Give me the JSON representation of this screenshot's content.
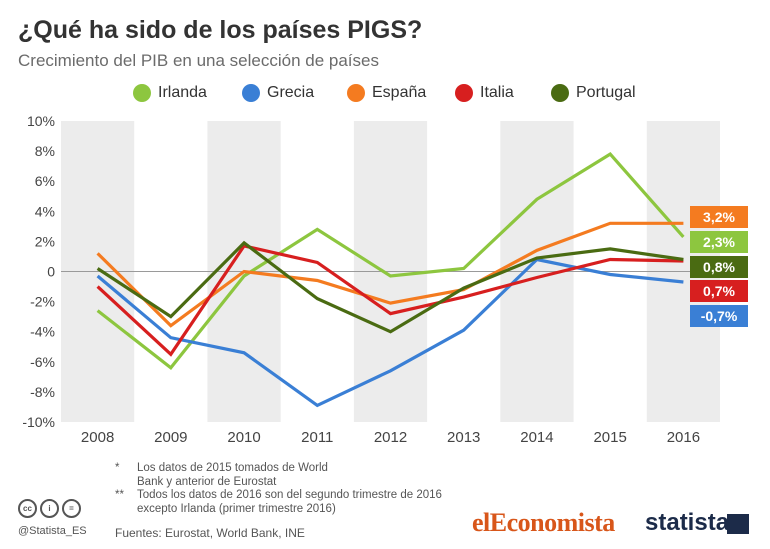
{
  "header": {
    "title": "¿Qué ha sido de los países PIGS?",
    "subtitle": "Crecimiento del PIB en una selección de países"
  },
  "chart_data": {
    "type": "line",
    "x": [
      "2008",
      "2009",
      "2010",
      "2011",
      "2012",
      "2013",
      "2014",
      "2015",
      "2016"
    ],
    "ylim": [
      -10,
      10
    ],
    "yticks": [
      "10%",
      "8%",
      "6%",
      "4%",
      "2%",
      "0",
      "-2%",
      "-4%",
      "-6%",
      "-8%",
      "-10%"
    ],
    "ytick_values": [
      10,
      8,
      6,
      4,
      2,
      0,
      -2,
      -4,
      -6,
      -8,
      -10
    ],
    "grid": "alternating vertical bands",
    "legend_position": "top",
    "series": [
      {
        "name": "Irlanda",
        "color": "#8dc63f",
        "values": [
          -2.6,
          -6.4,
          -0.3,
          2.8,
          -0.3,
          0.2,
          4.8,
          7.8,
          2.3
        ],
        "end_label": "2,3%"
      },
      {
        "name": "Grecia",
        "color": "#3a7fd5",
        "values": [
          -0.3,
          -4.4,
          -5.4,
          -8.9,
          -6.6,
          -3.9,
          0.8,
          -0.2,
          -0.7
        ],
        "end_label": "-0,7%"
      },
      {
        "name": "España",
        "color": "#f47b20",
        "values": [
          1.2,
          -3.6,
          0.0,
          -0.6,
          -2.1,
          -1.2,
          1.4,
          3.2,
          3.2
        ],
        "end_label": "3,2%"
      },
      {
        "name": "Italia",
        "color": "#d71f1f",
        "values": [
          -1.0,
          -5.5,
          1.7,
          0.6,
          -2.8,
          -1.7,
          -0.4,
          0.8,
          0.7
        ],
        "end_label": "0,7%"
      },
      {
        "name": "Portugal",
        "color": "#4a6b12",
        "values": [
          0.2,
          -3.0,
          1.9,
          -1.8,
          -4.0,
          -1.1,
          0.9,
          1.5,
          0.8
        ],
        "end_label": "0,8%"
      }
    ]
  },
  "footer": {
    "notes": [
      {
        "mark": "*",
        "text": "Los datos de 2015 tomados de World Bank y anterior de Eurostat"
      },
      {
        "mark": "**",
        "text": "Todos los datos de 2016 son del segundo trimestre de 2016 excepto Irlanda (primer trimestre 2016)"
      }
    ],
    "sources": "Fuentes: Eurostat, World Bank, INE",
    "handle": "@Statista_ES",
    "cc_icons": [
      {
        "icon": "creative-commons-icon",
        "text": "cc"
      },
      {
        "icon": "attribution-icon",
        "text": "i"
      },
      {
        "icon": "no-derivatives-icon",
        "text": "="
      }
    ],
    "brand_1": "elEconomista",
    "brand_2": "statista"
  }
}
